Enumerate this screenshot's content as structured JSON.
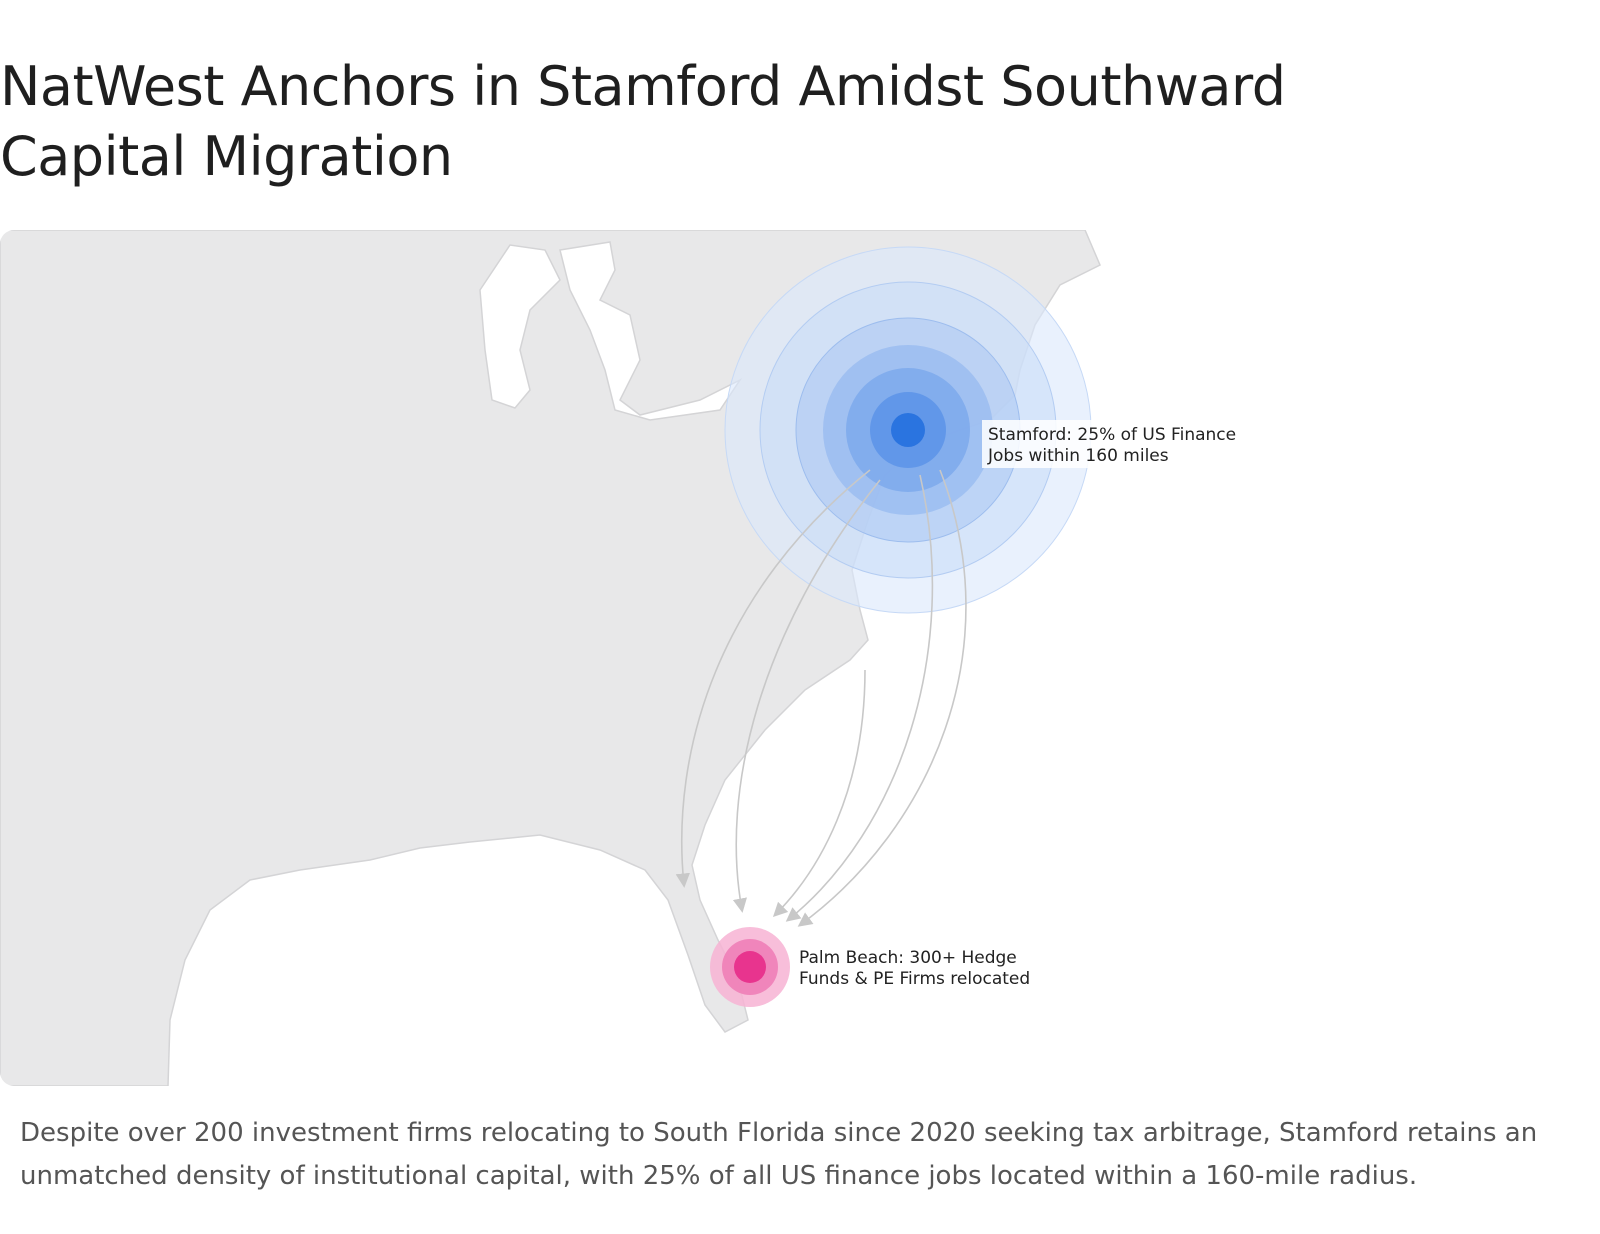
{
  "header": {
    "title": "NatWest Anchors in Stamford Amidst Southward Capital Migration"
  },
  "map": {
    "labels": [
      {
        "lines": [
          "Stamford: 25% of US Finance",
          "Jobs within 160 miles"
        ]
      },
      {
        "lines": [
          "Palm Beach: 300+ Hedge",
          "Funds & PE Firms relocated"
        ]
      }
    ]
  },
  "caption": "Despite over 200 investment firms relocating to South Florida since 2020 seeking tax arbitrage, Stamford retains an unmatched density of institutional capital, with 25% of all US finance jobs located within a 160-mile radius."
}
